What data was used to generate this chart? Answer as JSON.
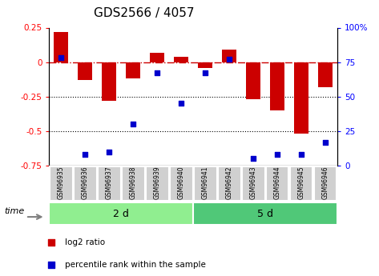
{
  "title": "GDS2566 / 4057",
  "samples": [
    "GSM96935",
    "GSM96936",
    "GSM96937",
    "GSM96938",
    "GSM96939",
    "GSM96940",
    "GSM96941",
    "GSM96942",
    "GSM96943",
    "GSM96944",
    "GSM96945",
    "GSM96946"
  ],
  "log2_ratio": [
    0.22,
    -0.13,
    -0.28,
    -0.12,
    0.07,
    0.04,
    -0.04,
    0.09,
    -0.27,
    -0.35,
    -0.52,
    -0.18
  ],
  "percentile_rank": [
    78,
    8,
    10,
    30,
    67,
    45,
    67,
    77,
    5,
    8,
    8,
    17
  ],
  "groups": [
    {
      "label": "2 d",
      "start": 0,
      "end": 6,
      "color": "#90EE90"
    },
    {
      "label": "5 d",
      "start": 6,
      "end": 12,
      "color": "#50C878"
    }
  ],
  "bar_color": "#CC0000",
  "dot_color": "#0000CC",
  "dashed_line_color": "#CC0000",
  "dotted_line_color": "#000000",
  "ylim_left": [
    -0.75,
    0.25
  ],
  "ylim_right": [
    0,
    100
  ],
  "left_yticks": [
    0.25,
    0,
    -0.25,
    -0.5,
    -0.75
  ],
  "right_yticks": [
    100,
    75,
    50,
    25,
    0
  ],
  "background_color": "#ffffff",
  "bar_width": 0.6,
  "time_label": "time",
  "legend_items": [
    {
      "label": "log2 ratio",
      "color": "#CC0000"
    },
    {
      "label": "percentile rank within the sample",
      "color": "#0000CC"
    }
  ]
}
